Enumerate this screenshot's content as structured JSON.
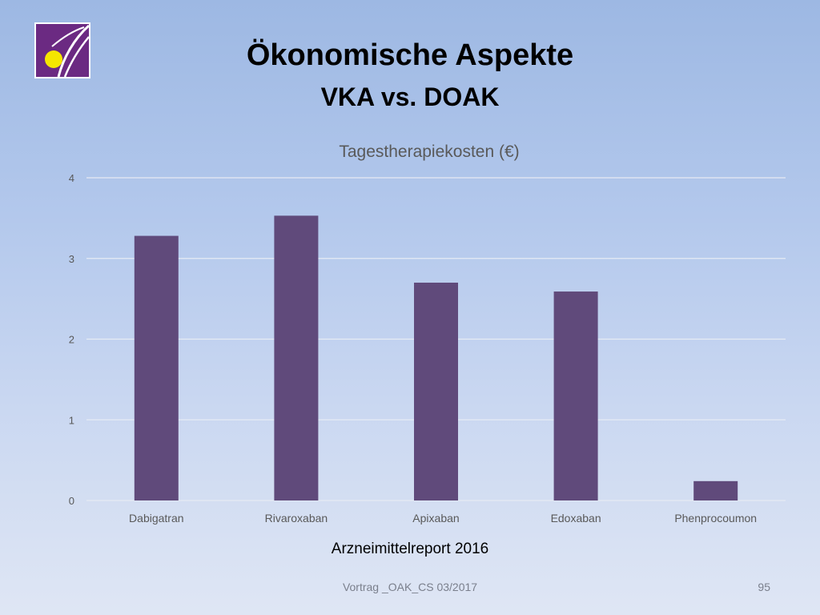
{
  "slide": {
    "title": "Ökonomische Aspekte",
    "subtitle": "VKA vs. DOAK",
    "caption": "Arzneimittelreport 2016",
    "footer": "Vortrag _OAK_CS 03/2017",
    "page_number": "95",
    "logo_icon": "clinic-logo-icon"
  },
  "colors": {
    "bar": "#604a7b",
    "grid": "#e6ebf4",
    "axis_text": "#595959",
    "chart_title": "#595959",
    "logo_bg": "#6b2a82",
    "logo_dot": "#f5e600"
  },
  "chart_data": {
    "type": "bar",
    "title": "Tagestherapiekosten (€)",
    "xlabel": "",
    "ylabel": "",
    "categories": [
      "Dabigatran",
      "Rivaroxaban",
      "Apixaban",
      "Edoxaban",
      "Phenprocoumon"
    ],
    "values": [
      3.28,
      3.53,
      2.7,
      2.59,
      0.24
    ],
    "ylim": [
      0,
      4
    ],
    "yticks": [
      "0",
      "1",
      "2",
      "3",
      "4"
    ],
    "grid": true,
    "legend": "none"
  }
}
